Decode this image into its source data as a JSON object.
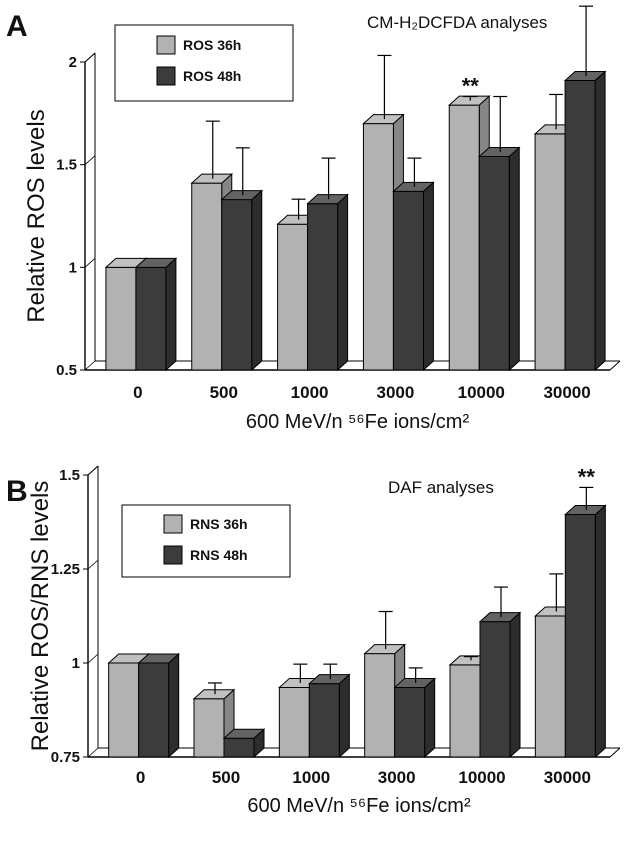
{
  "chart_data": [
    {
      "panel": "A",
      "type": "bar",
      "title": "CM-H₂DCFDA analyses",
      "ylabel": "Relative ROS levels",
      "xlabel": "600 MeV/n ⁵⁶Fe ions/cm²",
      "ylim": [
        0.5,
        2.0
      ],
      "yticks": [
        "0.5",
        "1",
        "1.5",
        "2"
      ],
      "categories": [
        "0",
        "500",
        "1000",
        "3000",
        "10000",
        "30000"
      ],
      "legend_position": "top-left",
      "series": [
        {
          "name": "ROS 36h",
          "color": "#b2b2b2",
          "values": [
            1.0,
            1.41,
            1.21,
            1.7,
            1.79,
            1.65
          ],
          "errors": [
            0.0,
            0.28,
            0.1,
            0.31,
            0.02,
            0.17
          ],
          "significance": [
            "",
            "",
            "",
            "",
            "**",
            ""
          ]
        },
        {
          "name": "ROS 48h",
          "color": "#3c3c3c",
          "values": [
            1.0,
            1.33,
            1.31,
            1.37,
            1.54,
            1.91
          ],
          "errors": [
            0.0,
            0.23,
            0.2,
            0.14,
            0.27,
            0.34
          ],
          "significance": [
            "",
            "",
            "",
            "",
            "",
            "**"
          ]
        }
      ]
    },
    {
      "panel": "B",
      "type": "bar",
      "title": "DAF analyses",
      "ylabel": "Relative ROS/RNS levels",
      "xlabel": "600 MeV/n ⁵⁶Fe ions/cm²",
      "ylim": [
        0.75,
        1.5
      ],
      "yticks": [
        "0.75",
        "1",
        "1.25",
        "1.5"
      ],
      "categories": [
        "0",
        "500",
        "1000",
        "3000",
        "10000",
        "30000"
      ],
      "legend_position": "top-left",
      "series": [
        {
          "name": "RNS 36h",
          "color": "#b2b2b2",
          "values": [
            1.0,
            0.905,
            0.935,
            1.025,
            0.995,
            1.125
          ],
          "errors": [
            0.0,
            0.03,
            0.05,
            0.1,
            0.01,
            0.1
          ],
          "significance": [
            "",
            "",
            "",
            "",
            "",
            ""
          ]
        },
        {
          "name": "RNS 48h",
          "color": "#3c3c3c",
          "values": [
            1.0,
            0.8,
            0.945,
            0.935,
            1.11,
            1.395
          ],
          "errors": [
            0.0,
            0.0,
            0.04,
            0.04,
            0.08,
            0.06
          ],
          "significance": [
            "",
            "",
            "",
            "",
            "",
            "**"
          ]
        }
      ]
    }
  ]
}
